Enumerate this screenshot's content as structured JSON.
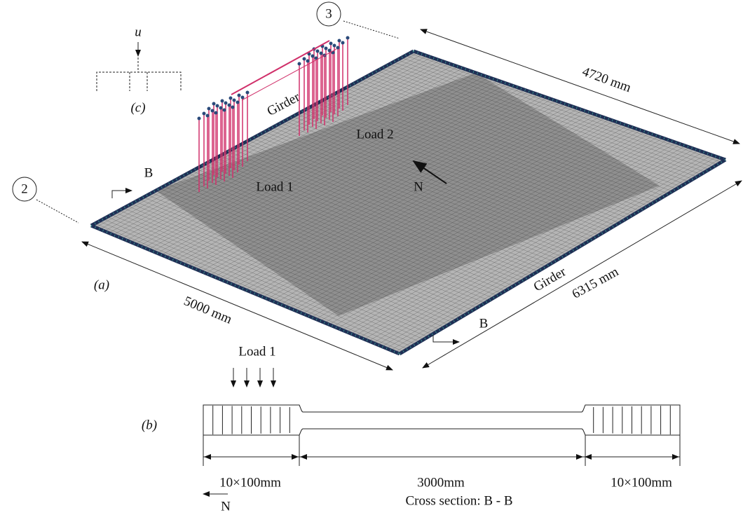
{
  "plan": {
    "label": "(a)",
    "callouts": [
      "2",
      "3"
    ],
    "girder_labels": [
      "Girder",
      "Girder"
    ],
    "loads": [
      "Load 1",
      "Load 2"
    ],
    "section_marks": [
      "B",
      "B"
    ],
    "north": "N",
    "dimensions": [
      "4720 mm",
      "6315 mm",
      "5000 mm"
    ]
  },
  "inset": {
    "label": "(c)",
    "variable": "u"
  },
  "section": {
    "label": "(b)",
    "load": "Load 1",
    "dimensions": [
      "10×100mm",
      "3000mm",
      "10×100mm"
    ],
    "caption": "Cross section: B - B",
    "north": "N"
  }
}
